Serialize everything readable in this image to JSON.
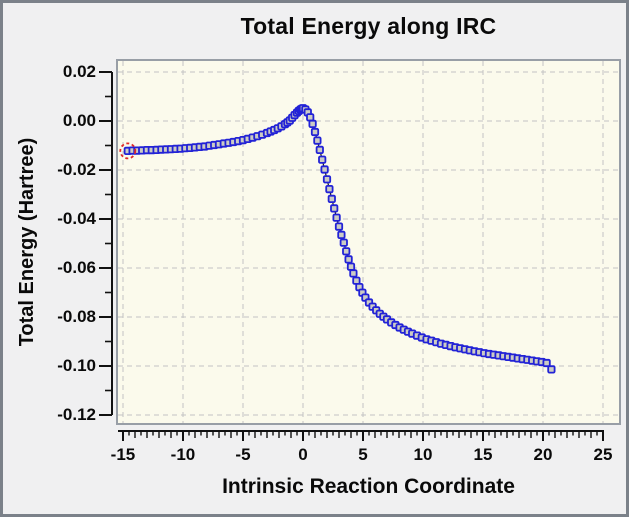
{
  "window": {
    "background_color": "#f0f0f1",
    "border_color": "#7b8189"
  },
  "chart_data": {
    "type": "scatter",
    "title": "Total Energy along IRC",
    "xlabel": "Intrinsic Reaction Coordinate",
    "ylabel": "Total Energy (Hartree)",
    "xlim": [
      -15.58,
      26.5
    ],
    "ylim": [
      -0.1241,
      0.0253
    ],
    "x_ticks": [
      -15,
      -10,
      -5,
      0,
      5,
      10,
      15,
      20,
      25
    ],
    "x_tick_labels": [
      "-15",
      "-10",
      "-5",
      "0",
      "5",
      "10",
      "15",
      "20",
      "25"
    ],
    "x_minor_tick_step": 0.5,
    "y_ticks": [
      0.02,
      0.0,
      -0.02,
      -0.04,
      -0.06,
      -0.08,
      -0.1,
      -0.12
    ],
    "y_tick_labels": [
      "0.02",
      "0.00",
      "-0.02",
      "-0.04",
      "-0.06",
      "-0.08",
      "-0.10",
      "-0.12"
    ],
    "y_minor_ticks": [
      0.01,
      -0.01,
      -0.03,
      -0.05,
      -0.07,
      -0.09,
      -0.11
    ],
    "grid": {
      "shown": true,
      "style": "dashed",
      "color": "#c3c3c3"
    },
    "legend": {
      "shown": false
    },
    "colors": {
      "plot_bg": "#fbfaec",
      "frame": "#989ea6",
      "line": "#1c1c1c",
      "marker_stroke": "#2222d6",
      "marker_fill": "#ccccc4",
      "highlight": "#e02828",
      "axis": "#111111"
    },
    "highlight": {
      "index": 0,
      "style": "dashed-circle"
    },
    "points": [
      [
        -14.6,
        -0.0122
      ],
      [
        -14.2,
        -0.0121
      ],
      [
        -13.8,
        -0.0121
      ],
      [
        -13.4,
        -0.012
      ],
      [
        -13.0,
        -0.0119
      ],
      [
        -12.6,
        -0.0119
      ],
      [
        -12.2,
        -0.0118
      ],
      [
        -11.8,
        -0.0117
      ],
      [
        -11.4,
        -0.0116
      ],
      [
        -11.0,
        -0.0115
      ],
      [
        -10.6,
        -0.0114
      ],
      [
        -10.2,
        -0.0113
      ],
      [
        -9.8,
        -0.0111
      ],
      [
        -9.4,
        -0.011
      ],
      [
        -9.0,
        -0.0108
      ],
      [
        -8.6,
        -0.0106
      ],
      [
        -8.2,
        -0.0104
      ],
      [
        -7.8,
        -0.0101
      ],
      [
        -7.4,
        -0.0098
      ],
      [
        -7.0,
        -0.0095
      ],
      [
        -6.6,
        -0.0092
      ],
      [
        -6.2,
        -0.0089
      ],
      [
        -5.8,
        -0.0086
      ],
      [
        -5.4,
        -0.0082
      ],
      [
        -5.0,
        -0.0078
      ],
      [
        -4.6,
        -0.0073
      ],
      [
        -4.2,
        -0.0068
      ],
      [
        -3.8,
        -0.0062
      ],
      [
        -3.4,
        -0.0056
      ],
      [
        -3.0,
        -0.0049
      ],
      [
        -2.7,
        -0.0043
      ],
      [
        -2.4,
        -0.0037
      ],
      [
        -2.1,
        -0.003
      ],
      [
        -1.8,
        -0.0022
      ],
      [
        -1.5,
        -0.0013
      ],
      [
        -1.3,
        -0.0006
      ],
      [
        -1.1,
        0.0002
      ],
      [
        -0.9,
        0.0013
      ],
      [
        -0.7,
        0.0024
      ],
      [
        -0.5,
        0.0034
      ],
      [
        -0.35,
        0.0041
      ],
      [
        -0.2,
        0.0047
      ],
      [
        -0.1,
        0.005
      ],
      [
        0.0,
        0.0052
      ],
      [
        0.2,
        0.0047
      ],
      [
        0.4,
        0.0035
      ],
      [
        0.6,
        0.0015
      ],
      [
        0.8,
        -0.0012
      ],
      [
        1.0,
        -0.0045
      ],
      [
        1.2,
        -0.008
      ],
      [
        1.4,
        -0.0118
      ],
      [
        1.6,
        -0.0158
      ],
      [
        1.8,
        -0.0198
      ],
      [
        2.0,
        -0.0238
      ],
      [
        2.2,
        -0.0278
      ],
      [
        2.4,
        -0.0318
      ],
      [
        2.6,
        -0.0357
      ],
      [
        2.8,
        -0.0395
      ],
      [
        3.0,
        -0.0431
      ],
      [
        3.2,
        -0.0465
      ],
      [
        3.4,
        -0.0497
      ],
      [
        3.6,
        -0.0532
      ],
      [
        3.8,
        -0.0565
      ],
      [
        4.0,
        -0.0595
      ],
      [
        4.2,
        -0.0622
      ],
      [
        4.45,
        -0.0652
      ],
      [
        4.7,
        -0.0678
      ],
      [
        4.95,
        -0.0701
      ],
      [
        5.2,
        -0.0721
      ],
      [
        5.5,
        -0.0741
      ],
      [
        5.8,
        -0.0758
      ],
      [
        6.1,
        -0.0773
      ],
      [
        6.4,
        -0.0787
      ],
      [
        6.7,
        -0.0799
      ],
      [
        7.0,
        -0.081
      ],
      [
        7.35,
        -0.0822
      ],
      [
        7.7,
        -0.0833
      ],
      [
        8.05,
        -0.0843
      ],
      [
        8.4,
        -0.0852
      ],
      [
        8.75,
        -0.086
      ],
      [
        9.1,
        -0.0868
      ],
      [
        9.5,
        -0.0876
      ],
      [
        9.9,
        -0.0884
      ],
      [
        10.3,
        -0.0891
      ],
      [
        10.7,
        -0.0897
      ],
      [
        11.1,
        -0.0903
      ],
      [
        11.5,
        -0.0909
      ],
      [
        11.9,
        -0.0914
      ],
      [
        12.3,
        -0.0919
      ],
      [
        12.7,
        -0.0924
      ],
      [
        13.1,
        -0.0928
      ],
      [
        13.5,
        -0.0932
      ],
      [
        13.9,
        -0.0936
      ],
      [
        14.3,
        -0.094
      ],
      [
        14.7,
        -0.0944
      ],
      [
        15.1,
        -0.0948
      ],
      [
        15.5,
        -0.0951
      ],
      [
        15.9,
        -0.0954
      ],
      [
        16.3,
        -0.0957
      ],
      [
        16.7,
        -0.096
      ],
      [
        17.1,
        -0.0963
      ],
      [
        17.5,
        -0.0966
      ],
      [
        17.9,
        -0.0969
      ],
      [
        18.3,
        -0.0972
      ],
      [
        18.7,
        -0.0975
      ],
      [
        19.1,
        -0.0978
      ],
      [
        19.5,
        -0.0981
      ],
      [
        19.9,
        -0.0984
      ],
      [
        20.3,
        -0.0988
      ],
      [
        20.7,
        -0.1014
      ]
    ]
  }
}
